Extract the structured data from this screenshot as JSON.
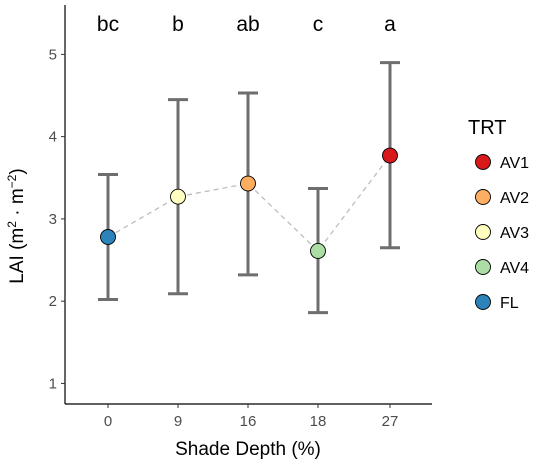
{
  "chart_data": {
    "type": "scatter",
    "xlabel": "Shade Depth (%)",
    "ylabel": {
      "prefix": "LAI (m",
      "exp1": "2",
      "middle": " · m",
      "exp2": "−2",
      "suffix": ")"
    },
    "ylim": [
      0.75,
      5.6
    ],
    "yticks": [
      1,
      2,
      3,
      4,
      5
    ],
    "categories": [
      "0",
      "9",
      "16",
      "18",
      "27"
    ],
    "points": [
      {
        "x": "0",
        "y": 2.78,
        "lower": 2.02,
        "upper": 3.54,
        "group": "FL",
        "letter": "bc"
      },
      {
        "x": "9",
        "y": 3.27,
        "lower": 2.09,
        "upper": 4.45,
        "group": "AV3",
        "letter": "b"
      },
      {
        "x": "16",
        "y": 3.43,
        "lower": 2.32,
        "upper": 4.53,
        "group": "AV2",
        "letter": "ab"
      },
      {
        "x": "18",
        "y": 2.61,
        "lower": 1.86,
        "upper": 3.37,
        "group": "AV4",
        "letter": "c"
      },
      {
        "x": "27",
        "y": 3.77,
        "lower": 2.65,
        "upper": 4.9,
        "group": "AV1",
        "letter": "a"
      }
    ],
    "legend": {
      "title": "TRT",
      "position": "right",
      "entries": [
        {
          "label": "AV1",
          "color": "#d7191c"
        },
        {
          "label": "AV2",
          "color": "#fdae61"
        },
        {
          "label": "AV3",
          "color": "#ffffbf"
        },
        {
          "label": "AV4",
          "color": "#abdda4"
        },
        {
          "label": "FL",
          "color": "#2b83ba"
        }
      ]
    },
    "colors": {
      "errorbar": "#6e6e6e",
      "connector": "#bdbdbd",
      "axis": "#000000"
    },
    "grid": false
  }
}
